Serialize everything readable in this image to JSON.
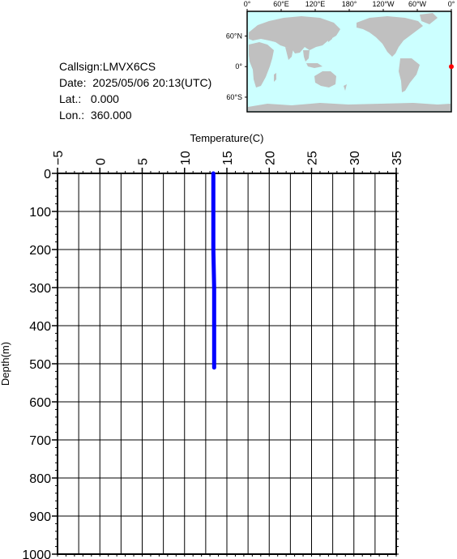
{
  "info": {
    "callsign": "Callsign:LMVX6CS",
    "date": "Date:  2025/05/06 20:13(UTC)",
    "lat": "Lat.:   0.000",
    "lon": "Lon.:  360.000"
  },
  "map": {
    "top_labels": [
      "0°",
      "60°E",
      "120°E",
      "180°",
      "120°W",
      "60°W",
      "0°"
    ],
    "left_labels": [
      "60°N",
      "0°",
      "60°S"
    ],
    "ocean_color": "#ccffff",
    "land_color": "#c0c0c0",
    "marker_color": "#ff0000",
    "marker_lon": 360.0,
    "marker_lat": 0.0
  },
  "chart_data": {
    "type": "line",
    "xlabel": "Temperature(C)",
    "ylabel": "Depth(m)",
    "xlim": [
      -5,
      35
    ],
    "ylim": [
      0,
      1000
    ],
    "x_ticks": [
      "−5",
      "0",
      "5",
      "10",
      "15",
      "20",
      "25",
      "30",
      "35"
    ],
    "y_ticks": [
      "0",
      "100",
      "200",
      "300",
      "400",
      "500",
      "600",
      "700",
      "800",
      "900",
      "1000"
    ],
    "grid": true,
    "y_inverted": true,
    "line_color": "#0000ff",
    "series": [
      {
        "temperature": [
          13.4,
          13.4,
          13.4,
          13.5,
          13.5,
          13.5
        ],
        "depth": [
          0,
          100,
          200,
          300,
          400,
          510
        ]
      }
    ]
  }
}
